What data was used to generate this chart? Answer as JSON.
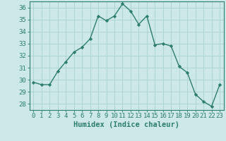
{
  "x": [
    0,
    1,
    2,
    3,
    4,
    5,
    6,
    7,
    8,
    9,
    10,
    11,
    12,
    13,
    14,
    15,
    16,
    17,
    18,
    19,
    20,
    21,
    22,
    23
  ],
  "y": [
    29.8,
    29.6,
    29.6,
    30.7,
    31.5,
    32.3,
    32.7,
    33.4,
    35.3,
    34.9,
    35.3,
    36.3,
    35.7,
    34.6,
    35.3,
    32.9,
    33.0,
    32.8,
    31.1,
    30.6,
    28.8,
    28.2,
    27.8,
    29.6
  ],
  "line_color": "#2e7d6e",
  "marker": "D",
  "marker_size": 2.2,
  "bg_color": "#cce8e8",
  "grid_color": "#aed4d4",
  "xlabel": "Humidex (Indice chaleur)",
  "ylabel": "",
  "xlim": [
    -0.5,
    23.5
  ],
  "ylim": [
    27.5,
    36.5
  ],
  "yticks": [
    28,
    29,
    30,
    31,
    32,
    33,
    34,
    35,
    36
  ],
  "xticks": [
    0,
    1,
    2,
    3,
    4,
    5,
    6,
    7,
    8,
    9,
    10,
    11,
    12,
    13,
    14,
    15,
    16,
    17,
    18,
    19,
    20,
    21,
    22,
    23
  ],
  "tick_color": "#2e7d6e",
  "spine_color": "#2e7d6e",
  "xlabel_fontsize": 7.5,
  "tick_fontsize": 6.5,
  "line_width": 1.0
}
